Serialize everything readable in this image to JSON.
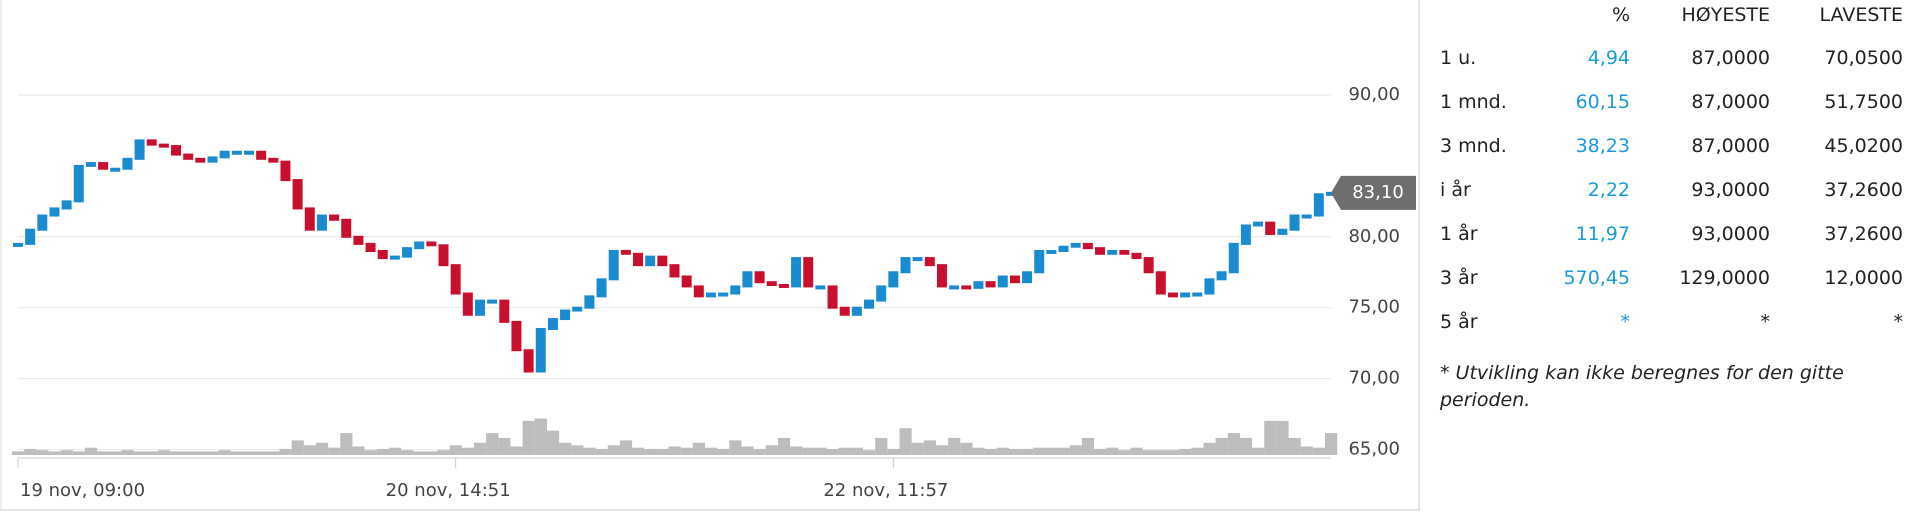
{
  "chart_data": {
    "type": "candle",
    "values": [
      79.5,
      80.5,
      81.5,
      82,
      82.5,
      85,
      85.2,
      84.8,
      84.8,
      85.5,
      86.8,
      86.5,
      86.4,
      85.8,
      85.5,
      85.3,
      85.6,
      86,
      86,
      86,
      85.5,
      85.3,
      84,
      82,
      80.5,
      81.5,
      81.2,
      80,
      79.5,
      79,
      78.5,
      78.6,
      79.2,
      79.6,
      79.4,
      78,
      76,
      74.5,
      75.5,
      75.5,
      74,
      72,
      70.5,
      73.5,
      74.2,
      74.8,
      75,
      75.8,
      77,
      79,
      78.8,
      78,
      78.6,
      78,
      77.2,
      76.5,
      75.8,
      76,
      76,
      76.5,
      77.5,
      76.8,
      76.6,
      76.5,
      78.5,
      76.5,
      76.5,
      75,
      74.5,
      75,
      75.5,
      76.5,
      77.5,
      78.5,
      78.5,
      78,
      76.5,
      76.5,
      76.4,
      76.8,
      76.5,
      77.2,
      76.8,
      77.5,
      79,
      79,
      79.3,
      79.5,
      79.2,
      78.8,
      79,
      78.8,
      78.5,
      77.5,
      76,
      75.8,
      76,
      76,
      77,
      77.5,
      79.5,
      80.8,
      81,
      80.2,
      80.5,
      81.5,
      81.5,
      83,
      83.1
    ],
    "volume": [
      3,
      5,
      4,
      3,
      4,
      3,
      6,
      3,
      3,
      4,
      3,
      3,
      4,
      3,
      3,
      3,
      3,
      4,
      3,
      3,
      3,
      3,
      5,
      12,
      8,
      10,
      6,
      18,
      7,
      4,
      5,
      6,
      4,
      3,
      3,
      4,
      8,
      6,
      10,
      18,
      14,
      7,
      28,
      30,
      20,
      10,
      8,
      6,
      5,
      8,
      12,
      6,
      5,
      5,
      7,
      6,
      10,
      6,
      5,
      12,
      7,
      5,
      8,
      14,
      7,
      6,
      6,
      5,
      6,
      6,
      4,
      14,
      5,
      22,
      10,
      12,
      8,
      14,
      10,
      6,
      5,
      6,
      5,
      5,
      6,
      6,
      6,
      8,
      14,
      5,
      6,
      4,
      6,
      4,
      4,
      4,
      5,
      6,
      10,
      14,
      18,
      14,
      6,
      28,
      28,
      14,
      7,
      6,
      18
    ],
    "up_color": "#1a8bd0",
    "down_color": "#c8102e",
    "volume_color": "#bdbdbd",
    "xlim": [
      0,
      108
    ],
    "ylim": [
      64.4,
      96.7
    ],
    "xticks": [
      {
        "value": 0,
        "label": "19 nov, 09:00"
      },
      {
        "value": 36,
        "label": "20 nov, 14:51"
      },
      {
        "value": 72,
        "label": "22 nov, 11:57"
      }
    ],
    "yticks": [
      {
        "value": 65,
        "label": "65,00"
      },
      {
        "value": 70,
        "label": "70,00"
      },
      {
        "value": 75,
        "label": "75,00"
      },
      {
        "value": 80,
        "label": "80,00"
      },
      {
        "value": 90,
        "label": "90,00"
      }
    ],
    "last": {
      "value": 83.1,
      "label": "83,10"
    },
    "grid": true
  },
  "table": {
    "columns": [
      "%",
      "HØYESTE",
      "LAVESTE"
    ],
    "rows": [
      [
        "1 u.",
        "4,94",
        "87,0000",
        "70,0500"
      ],
      [
        "1 mnd.",
        "60,15",
        "87,0000",
        "51,7500"
      ],
      [
        "3 mnd.",
        "38,23",
        "87,0000",
        "45,0200"
      ],
      [
        "i år",
        "2,22",
        "93,0000",
        "37,2600"
      ],
      [
        "1 år",
        "11,97",
        "93,0000",
        "37,2600"
      ],
      [
        "3 år",
        "570,45",
        "129,0000",
        "12,0000"
      ],
      [
        "5 år",
        "*",
        "*",
        "*"
      ]
    ],
    "footnote": "* Utvikling kan ikke beregnes for den gitte perioden."
  }
}
